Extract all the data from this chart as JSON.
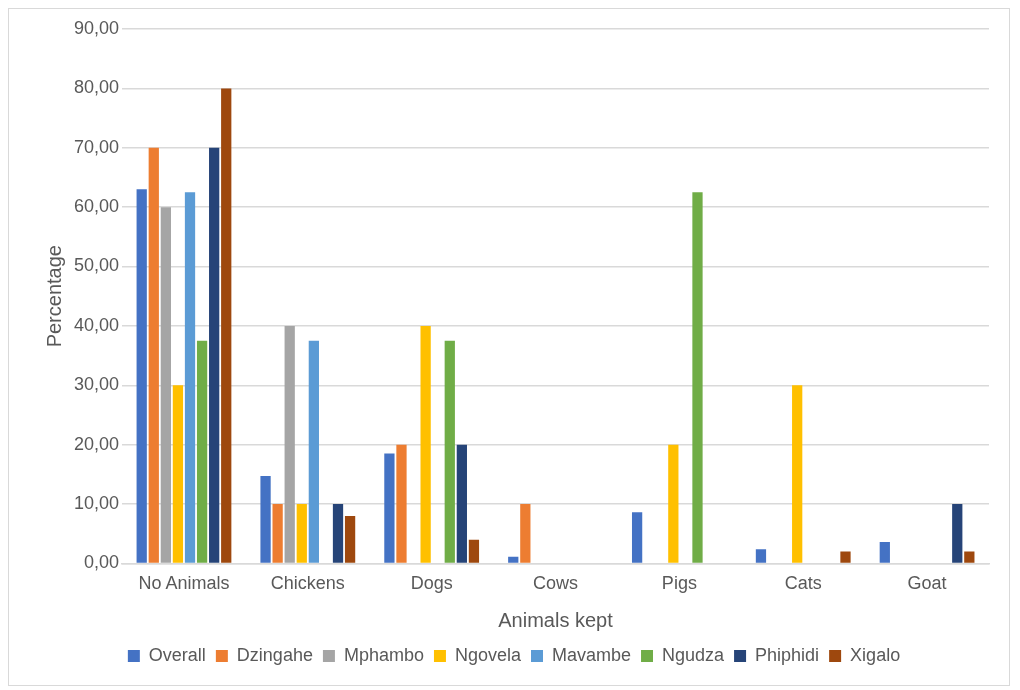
{
  "chart_data": {
    "type": "bar",
    "xlabel": "Animals kept",
    "ylabel": "Percentage",
    "categories": [
      "No Animals",
      "Chickens",
      "Dogs",
      "Cows",
      "Pigs",
      "Cats",
      "Goat"
    ],
    "series": [
      {
        "name": "Overall",
        "color": "#4472c4",
        "values": [
          63,
          14.7,
          18.5,
          1.1,
          8.6,
          2.4,
          3.6
        ]
      },
      {
        "name": "Dzingahe",
        "color": "#ed7d31",
        "values": [
          70,
          10,
          20,
          10,
          0,
          0,
          0
        ]
      },
      {
        "name": "Mphambo",
        "color": "#a5a5a5",
        "values": [
          60,
          40,
          0,
          0,
          0,
          0,
          0
        ]
      },
      {
        "name": "Ngovela",
        "color": "#ffc000",
        "values": [
          30,
          10,
          40,
          0,
          20,
          30,
          0
        ]
      },
      {
        "name": "Mavambe",
        "color": "#5b9bd5",
        "values": [
          62.5,
          37.5,
          0,
          0,
          0,
          0,
          0
        ]
      },
      {
        "name": "Ngudza",
        "color": "#70ad47",
        "values": [
          37.5,
          0,
          37.5,
          0,
          62.5,
          0,
          0
        ]
      },
      {
        "name": "Phiphidi",
        "color": "#264478",
        "values": [
          70,
          10,
          20,
          0,
          0,
          0,
          10
        ]
      },
      {
        "name": "Xigalo",
        "color": "#9e480e",
        "values": [
          80,
          8,
          4,
          0,
          0,
          2,
          2
        ]
      }
    ],
    "ylim": [
      0,
      90
    ],
    "yticks": [
      {
        "value": 0,
        "label": "0,00"
      },
      {
        "value": 10,
        "label": "10,00"
      },
      {
        "value": 20,
        "label": "20,00"
      },
      {
        "value": 30,
        "label": "30,00"
      },
      {
        "value": 40,
        "label": "40,00"
      },
      {
        "value": 50,
        "label": "50,00"
      },
      {
        "value": 60,
        "label": "60,00"
      },
      {
        "value": 70,
        "label": "70,00"
      },
      {
        "value": 80,
        "label": "80,00"
      },
      {
        "value": 90,
        "label": "90,00"
      }
    ],
    "grid": "y",
    "legend": "bottom"
  }
}
